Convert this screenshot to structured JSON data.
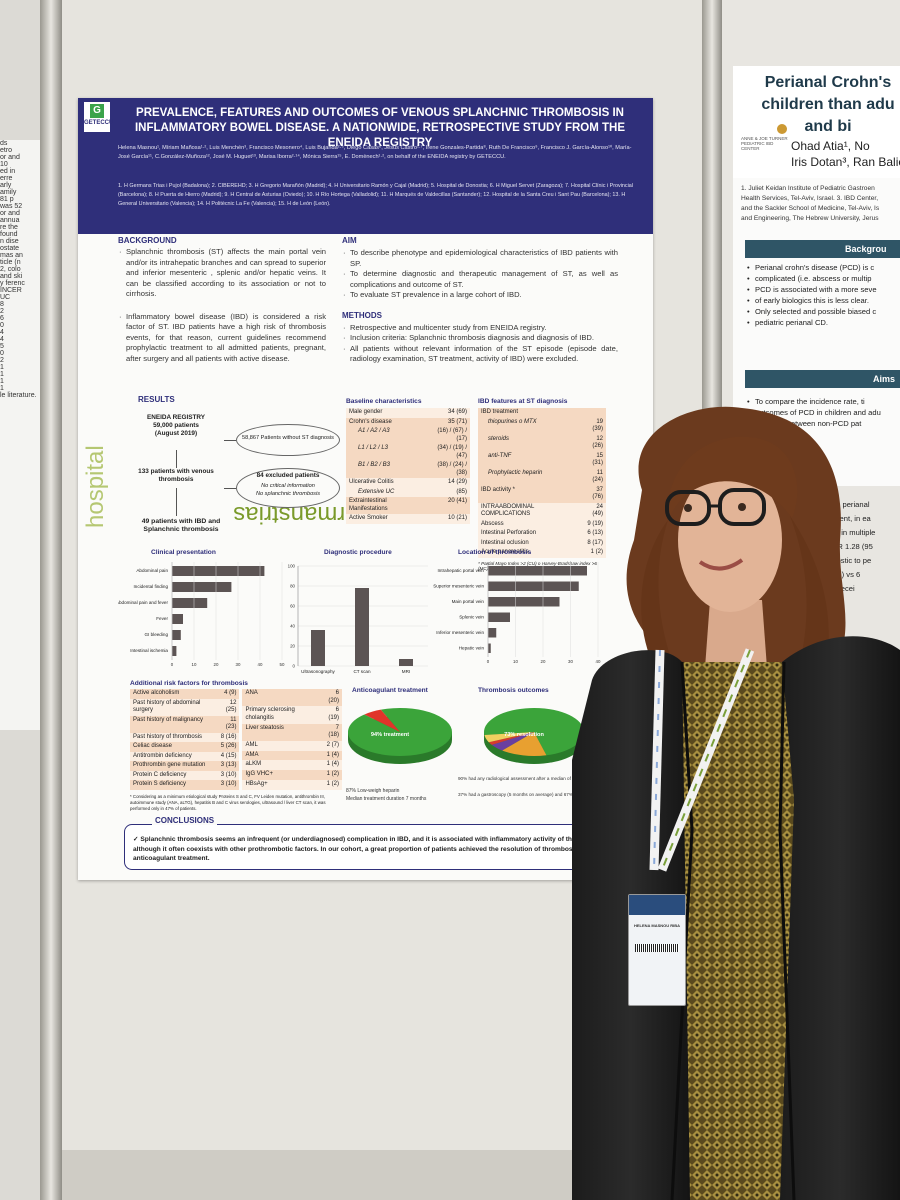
{
  "poster": {
    "logo_text": "GETECCU",
    "logo_letter": "G",
    "title": "PREVALENCE, FEATURES AND OUTCOMES OF VENOUS SPLANCHNIC THROMBOSIS IN INFLAMMATORY BOWEL DISEASE. A NATIONWIDE, RETROSPECTIVE STUDY FROM THE ENEIDA REGISTRY",
    "authors": "Helena Masnou¹, Míriam Mañosa¹·², Luis Menchén³, Francisco Mesonero⁴, Luis Bujanda²·⁵, Diego Casas⁶, Jesús Castro¹·⁷, Irene Gonzales-Partida⁸, Ruth De Francisco⁹, Francisco J. García-Alonso¹⁰, María-José García¹¹, C.González-Muñoza¹², José M. Huguet¹³, Marisa Iborra²·¹⁴, Mónica Sierra¹⁵, E. Domènech¹·², on behalf of the ENEIDA registry by GETECCU.",
    "affiliations": "1. H Germans Trias i Pujol (Badalona); 2. CIBEREHD; 3. H Gregorio Marañón (Madrid); 4. H Universitario Ramón y Cajal (Madrid); 5. Hospital de Donostia; 6. H Miguel Servet (Zaragoza); 7. Hospital Clínic i Provincial (Barcelona); 8. H Puerta de Hierro (Madrid); 9. H Central de Asturias (Oviedo); 10. H Río Hortega (Valladolid); 11. H Marqués de Valdecillas (Santander); 12. Hospital de la Santa Creu i Sant Pau (Barcelona); 13. H General Universitario (Valencia); 14. H Politècnic La Fe (Valencia); 15. H de León (León).",
    "brand_a": "germanstrias",
    "brand_b": "hospital",
    "background": {
      "heading": "BACKGROUND",
      "items": [
        "Splanchnic thrombosis (ST) affects the main portal vein and/or its intrahepatic branches and can spread to superior and inferior mesenteric , splenic and/or hepatic veins. It can be classified according to its association or not to cirrhosis.",
        "Inflammatory bowel disease (IBD) is considered a risk factor of ST. IBD patients have a high risk of thrombosis events, for that reason, current guidelines recommend prophylactic treatment to all admitted patients, pregnant, after surgery and all patients with active disease."
      ]
    },
    "aim": {
      "heading": "AIM",
      "items": [
        "To describe phenotype and epidemiological characteristics of IBD patients with SP.",
        "To determine diagnostic and therapeutic management of ST, as well as complications and outcome of ST.",
        "To evaluate ST prevalence in a large cohort of IBD."
      ]
    },
    "methods": {
      "heading": "METHODS",
      "items": [
        "Retrospective and multicenter study from ENEIDA registry.",
        "Inclusion criteria: Splanchnic thrombosis diagnosis and diagnosis of IBD.",
        "All patients without relevant information of the ST episode (episode date, radiology examination, ST treatment, activity of IBD) were excluded."
      ]
    },
    "results": {
      "heading": "RESULTS",
      "flow": {
        "registry": "ENEIDA REGISTRY",
        "registry_count": "59,000 patients",
        "registry_date": "(August 2019)",
        "without_st": "58,867 Patients without ST diagnosis",
        "venous": "133 patients with venous thrombosis",
        "excluded": "84 excluded patients",
        "excl_reason_1": "No critical information",
        "excl_reason_2": "No splanchnic thrombosis",
        "final": "49 patients with IBD and Splanchnic thrombosis"
      }
    },
    "baseline": {
      "heading": "Baseline characteristics",
      "rows": [
        [
          "Male gender",
          "34 (69)"
        ],
        [
          "Crohn's disease",
          "35 (71)"
        ],
        [
          "A1 / A2 / A3",
          "(16) / (67) / (17)"
        ],
        [
          "L1 / L2 / L3",
          "(34) / (19) / (47)"
        ],
        [
          "B1 / B2 / B3",
          "(38) / (24) / (38)"
        ],
        [
          "Ulcerative Colitis",
          "14 (29)"
        ],
        [
          "Extensive UC",
          "(85)"
        ],
        [
          "Extraintestinal Manifestations",
          "20 (41)"
        ],
        [
          "Active Smoker",
          "10 (21)"
        ]
      ]
    },
    "ibd_features": {
      "heading": "IBD features at ST diagnosis",
      "rows": [
        [
          "IBD treatment",
          ""
        ],
        [
          "thiopurines o MTX",
          "19 (39)"
        ],
        [
          "steroids",
          "12 (26)"
        ],
        [
          "anti-TNF",
          "15 (31)"
        ],
        [
          "Prophylactic heparin",
          "11 (24)"
        ],
        [
          "IBD activity *",
          "37 (76)"
        ],
        [
          "INTRAABDOMINAL COMPLICATIONS",
          "24 (49)"
        ],
        [
          "Abscess",
          "9 (19)"
        ],
        [
          "Intestinal Perforation",
          "6 (13)"
        ],
        [
          "Intestinal oclusion",
          "8 (17)"
        ],
        [
          "Acute pancreatitis",
          "1 (2)"
        ]
      ],
      "footnote": "* Partial Mayo Index >2 (CU) o Harvey-Bradshaw index >6 (MC)"
    },
    "additional_risk": {
      "heading": "Additional risk factors for thrombosis",
      "left": [
        [
          "Active alcoholism",
          "4 (9)"
        ],
        [
          "Past history of abdominal surgery",
          "12 (25)"
        ],
        [
          "Past history of malignancy",
          "11 (23)"
        ],
        [
          "Past history of thrombosis",
          "8 (16)"
        ],
        [
          "Celiac disease",
          "5 (26)"
        ],
        [
          "Antitrombin deficiency",
          "4 (15)"
        ],
        [
          "Prothrombin gene mutation",
          "3 (13)"
        ],
        [
          "Protein C deficiency",
          "3 (10)"
        ],
        [
          "Protein S deficiency",
          "3 (10)"
        ]
      ],
      "right": [
        [
          "ANA",
          "6 (20)"
        ],
        [
          "Primary sclerosing cholangitis",
          "6 (19)"
        ],
        [
          "Liver steatosis",
          "7 (18)"
        ],
        [
          "AML",
          "2 (7)"
        ],
        [
          "AMA",
          "1 (4)"
        ],
        [
          "aLKM",
          "1 (4)"
        ],
        [
          "IgG VHC+",
          "1 (2)"
        ],
        [
          "HBsAg+",
          "1 (2)"
        ]
      ],
      "footnote": "* Considering as a minimum etiological study Proteins S and C, FV Leiden mutation, antithrombin III, autoimmune study (ANA, aLTG), hepatitis B and C virus serologies, ultrasound / liver CT scan, it was performed only in 47% of patients."
    },
    "clinical_presentation": {
      "title": "Clinical presentation",
      "categories": [
        "Abdominal pain",
        "Incidental finding",
        "Abdominal pain and fever",
        "Fever",
        "GI bleeding",
        "Intestinal ischemia"
      ],
      "values": [
        42,
        27,
        16,
        5,
        4,
        2
      ],
      "ticks": [
        "0",
        "10",
        "20",
        "30",
        "40",
        "50"
      ],
      "xlim": [
        0,
        50
      ]
    },
    "diagnostic_procedure": {
      "title": "Diagnostic procedure",
      "categories": [
        "Ultrasonography",
        "CT scan",
        "MRI"
      ],
      "values": [
        36,
        78,
        7
      ],
      "ticks": [
        "0",
        "20",
        "40",
        "60",
        "80",
        "100"
      ],
      "ylim": [
        0,
        100
      ]
    },
    "location": {
      "title": "Location of thrombosis",
      "categories": [
        "Intrahepatic portal vein",
        "Superior mesenteric vein",
        "Main portal vein",
        "Splenic vein",
        "Inferior mesenteric vein",
        "Hepatic vein"
      ],
      "values": [
        36,
        33,
        26,
        8,
        3,
        1
      ],
      "ticks": [
        "0",
        "10",
        "20",
        "30",
        "40"
      ],
      "xlim": [
        0,
        40
      ]
    },
    "anticoagulant": {
      "title": "Anticoagulant treatment",
      "main_label": "94% treatment",
      "slices": [
        94,
        6
      ],
      "colors": [
        "#3ba43a",
        "#e0342a"
      ],
      "notes": [
        "87% Low-weigh heparin",
        "Median treatment duration 7 months"
      ]
    },
    "outcomes": {
      "title": "Thrombosis outcomes",
      "main_label": "73% resolution",
      "slices": [
        73,
        15,
        5,
        2,
        5
      ],
      "colors": [
        "#3ba43a",
        "#e8a030",
        "#6a3fa0",
        "#d63a2e",
        "#f0d060"
      ],
      "legend": [
        "15% without changes",
        "5% improve",
        "2% progression",
        "5% cavernomatosis"
      ],
      "notes": [
        "90% had any radiological assessment after a median of 5 months.",
        "37% had a gastroscopy (5 months on average) and 67% had oesophageal varices."
      ]
    },
    "conclusions": {
      "heading": "CONCLUSIONS",
      "text": "Splanchnic thrombosis seems an infrequent (or underdiagnosed) complication in IBD, and it is associated with inflammatory activity of the disease, although it often coexists with other prothrombotic factors. In our cohort, a great proportion of patients achieved the resolution of thrombosis with anticoagulant treatment."
    }
  },
  "right_poster": {
    "title_1": "Perianal Crohn's",
    "title_2": "children than adu",
    "title_3": "and bi",
    "authors_1": "Ohad Atia¹, No",
    "authors_2": "Iris Dotan³, Ran Balicer",
    "logo_text": "ANNE & JOE TURNER PEDIATRIC IBD CENTER",
    "affiliations": [
      "1. Juliet Keidan Institute of Pediatric Gastroen",
      "Health Services, Tel-Aviv, Israel. 3. IBD Center,",
      "and the Sackler School of Medicine, Tel-Aviv, Is",
      "and Engineering, The Hebrew University, Jerus"
    ],
    "background_heading": "Backgrou",
    "background_items": [
      "Perianal crohn's disease (PCD) is c",
      "complicated (i.e. abscess or multip",
      "PCD is associated with a more seve",
      "of early biologics this is less clear.",
      "Only selected and possible biased c",
      "pediatric perianal CD."
    ],
    "aims_heading": "Aims",
    "aims_items": [
      "To compare the incidence rate, ti",
      "outcomes of PCD in children and adu",
      "compare between non-PCD pat",
      "era."
    ],
    "results_lines": [
      "adults, perianal",
      "treatment, in ea",
      "higher in multiple",
      "%); OR 1.28 (95",
      "diagnostic to pe",
      "2.1-9.1) vs 6",
      "ely to recei"
    ]
  },
  "left_poster": {
    "lines": [
      "ds",
      "etro",
      "or and",
      "10",
      "ed in",
      "erre",
      "arly",
      "amily",
      "81 p",
      "was 52",
      "or and",
      "annua",
      "re the",
      "found",
      "n dise",
      "ostate",
      "mas an",
      "ticle (n",
      "2, colo",
      "and ski",
      "y ferenc",
      "INCER",
      "UC",
      "8",
      "2",
      "6",
      "0",
      "4",
      "4",
      "5",
      "0",
      "2",
      "1",
      "1",
      "1",
      "1",
      "le literature."
    ]
  },
  "badge": {
    "name": "HELENA MASNOU RIBA"
  }
}
